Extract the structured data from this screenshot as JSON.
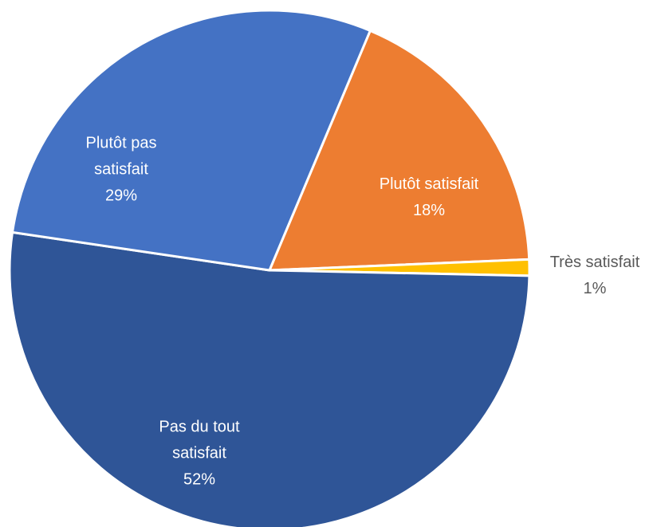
{
  "chart_data": {
    "type": "pie",
    "categories": [
      "Plutôt satisfait",
      "Très satisfait",
      "Pas du tout satisfait",
      "Plutôt pas satisfait"
    ],
    "values": [
      18,
      1,
      52,
      29
    ],
    "value_labels": [
      "18%",
      "1%",
      "52%",
      "29%"
    ],
    "colors": [
      "#ED7D31",
      "#FFC000",
      "#2F5597",
      "#4472C4"
    ]
  }
}
